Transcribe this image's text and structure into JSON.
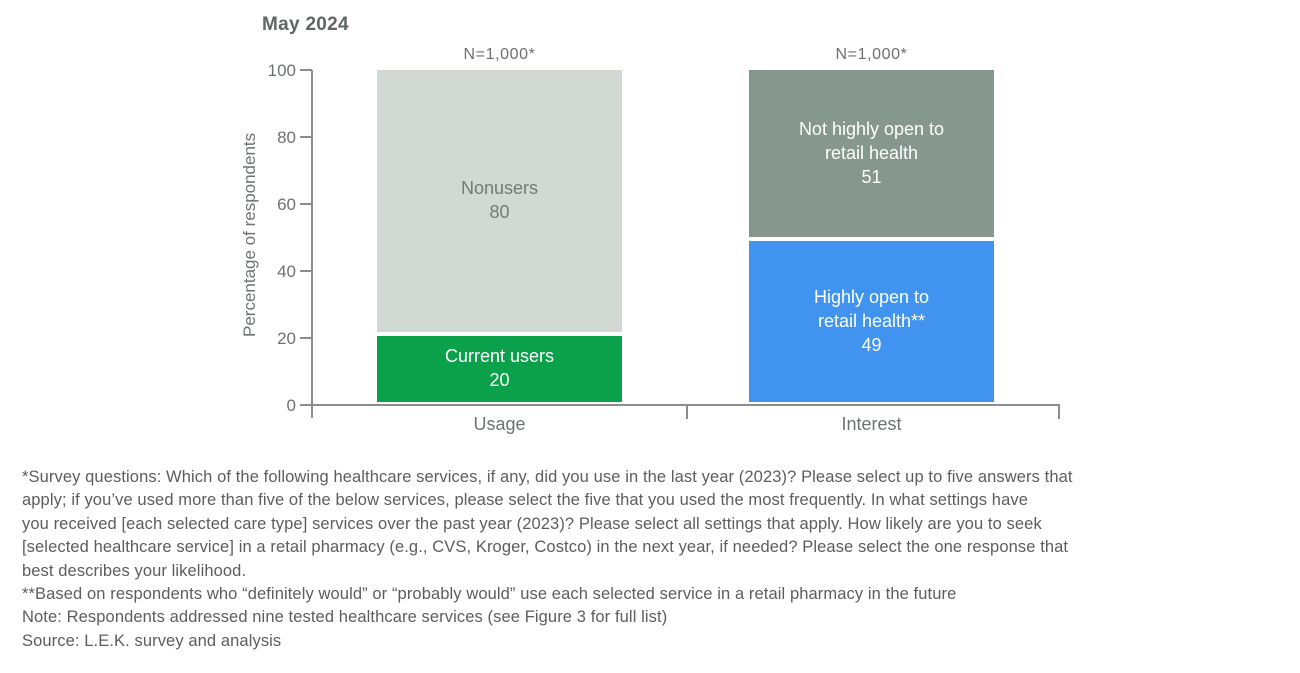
{
  "chart_data": {
    "type": "bar",
    "stacked": true,
    "title": "May 2024",
    "ylabel": "Percentage of respondents",
    "ylim": [
      0,
      100
    ],
    "yticks": [
      100,
      80,
      60,
      40,
      20,
      0
    ],
    "ytick_labels": [
      "100",
      "80",
      "60",
      "40",
      "20",
      "0"
    ],
    "categories": [
      "Usage",
      "Interest"
    ],
    "legend": "none",
    "grid": false,
    "bars": [
      {
        "category": "Usage",
        "n_label": "N=1,000*",
        "segments": [
          {
            "name": "Nonusers",
            "label_lines": [
              "Nonusers"
            ],
            "value": 80,
            "color": "#d2d8d4",
            "text_color": "#717c76"
          },
          {
            "name": "Current users",
            "label_lines": [
              "Current users"
            ],
            "value": 20,
            "color": "#0aa14a",
            "text_color": "#ffffff"
          }
        ]
      },
      {
        "category": "Interest",
        "n_label": "N=1,000*",
        "segments": [
          {
            "name": "Not highly open to retail health",
            "label_lines": [
              "Not highly open to",
              "retail health"
            ],
            "value": 51,
            "color": "#86978d",
            "text_color": "#ffffff"
          },
          {
            "name": "Highly open to retail health**",
            "label_lines": [
              "Highly open to",
              "retail health**"
            ],
            "value": 49,
            "color": "#4094f0",
            "text_color": "#ffffff"
          }
        ]
      }
    ]
  },
  "colors": {
    "axis": "#8c8c8c",
    "tick_text": "#6e736f",
    "title_text": "#5f6663",
    "nonusers_fill": "#d2d8d4",
    "current_users_fill": "#0aa14a",
    "not_highly_open_fill": "#86978d",
    "highly_open_fill": "#4094f0",
    "footnote_text": "#5d5d5d"
  },
  "footnotes": {
    "lines": [
      "*Survey questions: Which of the following healthcare services, if any, did you use in the last year (2023)? Please select up to five answers that",
      "apply; if you’ve used more than five of the below services, please select the five that you used the most frequently. In what settings have",
      "you received [each selected care type] services over the past year (2023)? Please select all settings that apply. How likely are you to seek",
      "[selected healthcare service] in a retail pharmacy (e.g., CVS, Kroger, Costco) in the next year, if needed? Please select the one response that",
      "best describes your likelihood.",
      "**Based on respondents who “definitely would” or “probably would” use each selected service in a retail pharmacy in the future",
      "Note: Respondents addressed nine tested healthcare services (see Figure 3 for full list)",
      "Source: L.E.K. survey and analysis"
    ]
  }
}
